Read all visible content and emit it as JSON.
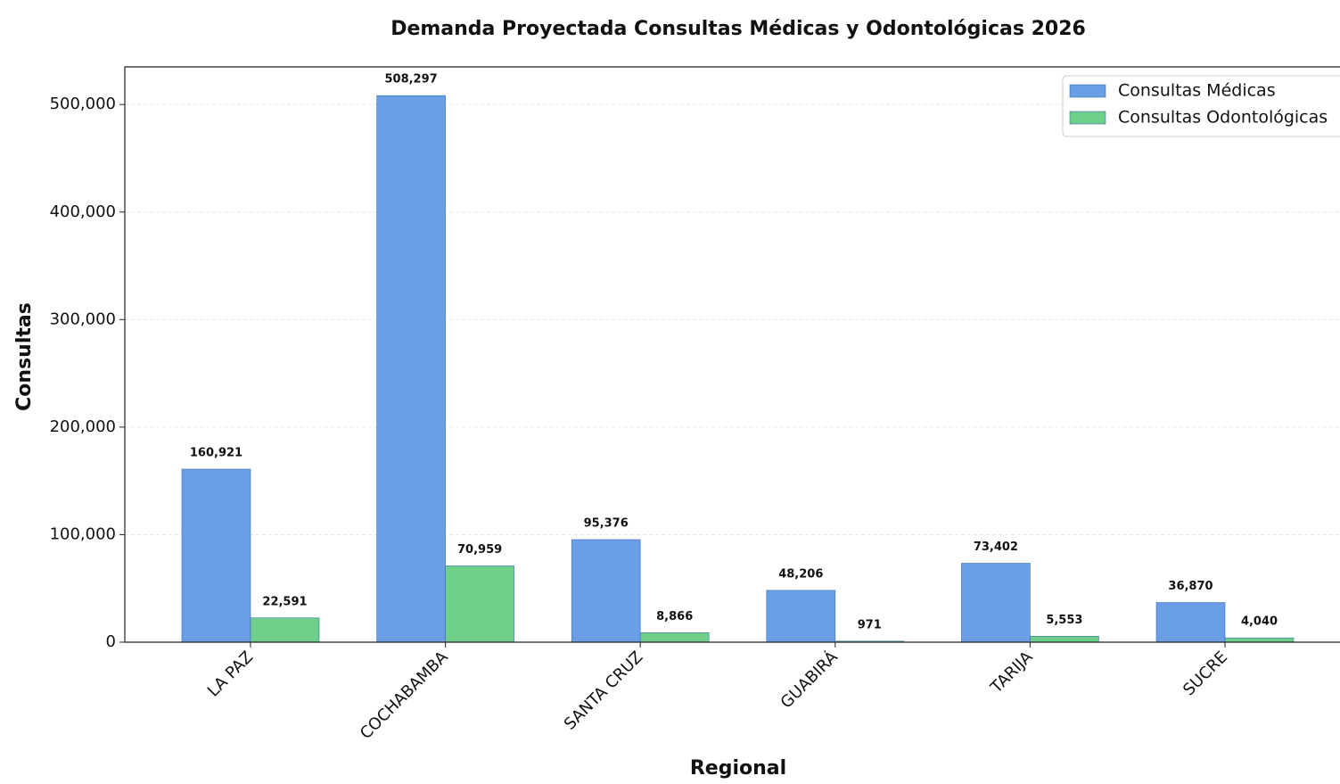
{
  "chart_data": {
    "type": "bar",
    "title": "Demanda Proyectada Consultas Médicas y Odontológicas 2026",
    "x_label": "Regional",
    "y_label": "Consultas",
    "categories": [
      "LA PAZ",
      "COCHABAMBA",
      "SANTA CRUZ",
      "GUABIRÁ",
      "TARIJA",
      "SUCRE"
    ],
    "series": [
      {
        "name": "Consultas Médicas",
        "color": "#6a9fe6",
        "values": [
          160921,
          508297,
          95376,
          48206,
          73402,
          36870
        ],
        "value_labels": [
          "160,921",
          "508,297",
          "95,376",
          "48,206",
          "73,402",
          "36,870"
        ]
      },
      {
        "name": "Consultas Odontológicas",
        "color": "#6fcf8a",
        "values": [
          22591,
          70959,
          8866,
          971,
          5553,
          4040
        ],
        "value_labels": [
          "22,591",
          "70,959",
          "8,866",
          "971",
          "5,553",
          "4,040"
        ]
      }
    ],
    "ylim": [
      0,
      535000
    ],
    "yticks": [
      0,
      {
        "value": 100000,
        "label": "100,000"
      },
      {
        "value": 200000,
        "label": "200,000"
      },
      {
        "value": 300000,
        "label": "300,000"
      },
      {
        "value": 400000,
        "label": "400,000"
      },
      {
        "value": 500000,
        "label": "500,000"
      }
    ],
    "grid": true,
    "legend": "upper right"
  }
}
